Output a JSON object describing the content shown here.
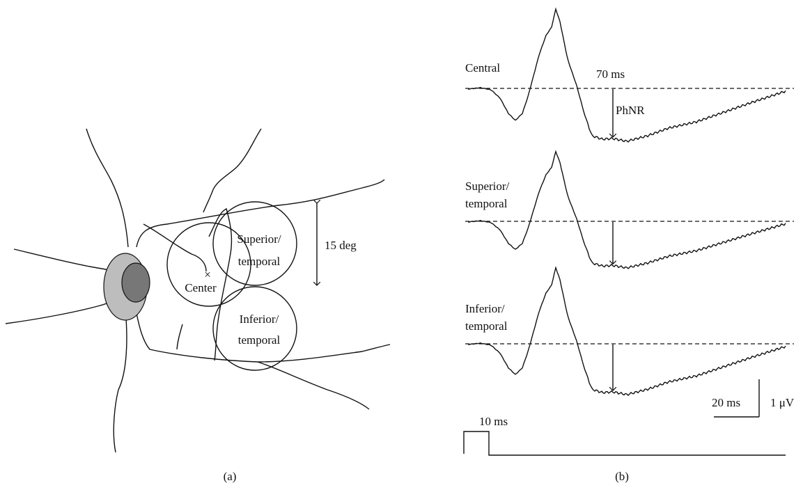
{
  "panel_a": {
    "label": "(a)",
    "center": {
      "label": "Center",
      "marker": "×"
    },
    "superior": {
      "lines": [
        "Superior/",
        "temporal"
      ]
    },
    "inferior": {
      "lines": [
        "Inferior/",
        "temporal"
      ]
    },
    "scale": "15 deg"
  },
  "panel_b": {
    "label": "(b)",
    "traces": [
      {
        "lines": [
          "Central"
        ]
      },
      {
        "lines": [
          "Superior/",
          "temporal"
        ]
      },
      {
        "lines": [
          "Inferior/",
          "temporal"
        ]
      }
    ],
    "latency": "70 ms",
    "component": "PhNR",
    "time_scale": "20 ms",
    "amplitude_scale": "1 μV",
    "stimulus": "10 ms"
  }
}
